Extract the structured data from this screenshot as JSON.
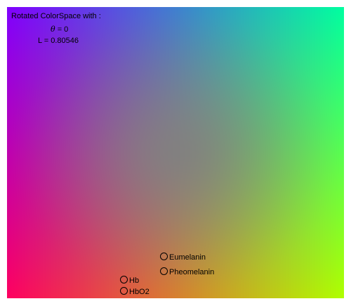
{
  "info": {
    "title": "Rotated ColorSpace with :",
    "theta_symbol": "θ",
    "theta_value": "= 0",
    "l_line": "L = 0.80546"
  },
  "markers": [
    {
      "id": "eumelanin",
      "label": "Eumelanin"
    },
    {
      "id": "pheomelanin",
      "label": "Pheomelanin"
    },
    {
      "id": "hb",
      "label": "Hb"
    },
    {
      "id": "hbo2",
      "label": "HbO2"
    }
  ],
  "colors": {
    "top_left": "#8000ff",
    "top_right": "#00ffa0",
    "bottom_left": "#ff0060",
    "bottom_right": "#b0ff00",
    "center": "#808080"
  }
}
